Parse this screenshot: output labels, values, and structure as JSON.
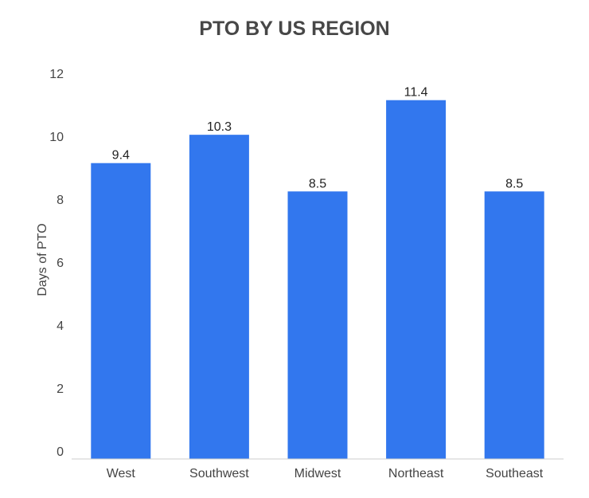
{
  "chart_data": {
    "type": "bar",
    "title": "PTO BY US REGION",
    "xlabel": "",
    "ylabel": "Days of PTO",
    "categories": [
      "West",
      "Southwest",
      "Midwest",
      "Northeast",
      "Southeast"
    ],
    "values": [
      9.4,
      10.3,
      8.5,
      11.4,
      8.5
    ],
    "value_labels": [
      "9.4",
      "10.3",
      "8.5",
      "11.4",
      "8.5"
    ],
    "ylim": [
      0,
      12
    ],
    "yticks": [
      0,
      2,
      4,
      6,
      8,
      10,
      12
    ],
    "grid": false,
    "legend": "none",
    "colors": {
      "bar": "#3277EE",
      "title": "#474747",
      "axis_text": "#444444",
      "value_text": "#222222",
      "baseline": "#cccccc"
    }
  }
}
